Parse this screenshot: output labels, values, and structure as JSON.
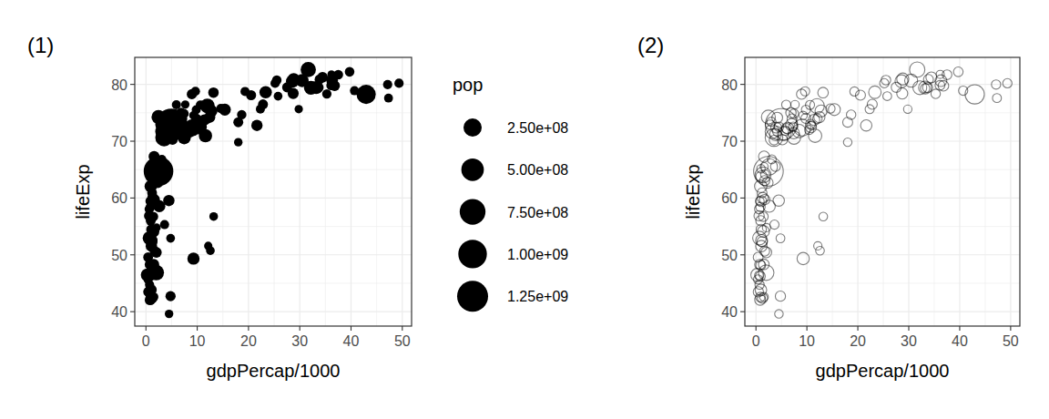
{
  "chart_data": [
    {
      "type": "scatter",
      "title": "(1)",
      "x_label": "gdpPercap/1000",
      "y_label": "lifeExp",
      "marker": "filled",
      "color": "#000000",
      "grid": true,
      "legend": "right",
      "xlim": [
        -2.18,
        51.81
      ],
      "xticks": [
        0,
        10,
        20,
        30,
        40,
        50
      ],
      "ylim": [
        37.46,
        84.75
      ],
      "yticks": [
        40,
        50,
        60,
        70,
        80
      ],
      "size_title": "pop",
      "size_ticks": [
        {
          "value": 250000000,
          "label": "2.50e+08"
        },
        {
          "value": 500000000,
          "label": "5.00e+08"
        },
        {
          "value": 750000000,
          "label": "7.50e+08"
        },
        {
          "value": 1000000000,
          "label": "1.00e+09"
        },
        {
          "value": 1250000000,
          "label": "1.25e+09"
        }
      ],
      "x": [
        0.97,
        5.94,
        6.22,
        4.8,
        12.78,
        34.44,
        36.13,
        29.8,
        1.39,
        33.69,
        1.44,
        3.82,
        7.45,
        12.57,
        9.07,
        10.68,
        1.22,
        0.43,
        1.71,
        2.04,
        36.32,
        0.71,
        1.7,
        13.17,
        4.96,
        7.01,
        0.99,
        0.28,
        3.63,
        9.65,
        1.54,
        14.62,
        8.95,
        22.83,
        35.28,
        2.08,
        6.03,
        6.87,
        5.58,
        5.73,
        12.15,
        0.64,
        0.69,
        33.21,
        30.47,
        13.21,
        0.75,
        32.17,
        1.33,
        27.54,
        5.19,
        0.94,
        0.58,
        1.2,
        3.55,
        39.72,
        18.01,
        36.18,
        2.45,
        3.54,
        11.61,
        4.47,
        40.68,
        25.52,
        28.57,
        7.32,
        31.66,
        4.52,
        1.46,
        1.59,
        23.35,
        47.31,
        10.46,
        1.57,
        0.41,
        12.06,
        1.04,
        0.76,
        12.45,
        1.04,
        1.8,
        10.96,
        11.98,
        3.1,
        9.25,
        3.82,
        0.82,
        0.94,
        4.81,
        1.09,
        36.8,
        25.19,
        2.75,
        0.62,
        2.01,
        49.36,
        22.32,
        2.61,
        9.81,
        4.17,
        7.41,
        3.19,
        15.39,
        20.51,
        19.33,
        7.67,
        10.81,
        0.86,
        1.6,
        21.65,
        1.71,
        9.79,
        0.86,
        47.14,
        18.68,
        25.77,
        0.93,
        9.27,
        28.82,
        3.97,
        2.6,
        4.51,
        33.86,
        37.51,
        4.18,
        28.72,
        1.11,
        7.46,
        0.88,
        18.01,
        7.09,
        8.46,
        1.06,
        33.2,
        42.95,
        10.61,
        11.42,
        2.44,
        3.03,
        2.28,
        1.27,
        0.47
      ],
      "values": [
        43.83,
        76.42,
        72.3,
        42.73,
        75.32,
        81.24,
        79.83,
        75.64,
        64.06,
        79.44,
        56.73,
        65.55,
        74.85,
        50.73,
        72.39,
        73.01,
        52.3,
        49.58,
        59.72,
        50.43,
        80.65,
        44.74,
        50.65,
        78.55,
        72.96,
        72.89,
        65.15,
        46.46,
        55.32,
        78.78,
        48.33,
        75.75,
        78.27,
        76.49,
        78.33,
        54.79,
        72.24,
        74.99,
        71.34,
        71.88,
        51.58,
        58.04,
        52.95,
        79.31,
        80.66,
        56.74,
        59.45,
        79.41,
        60.02,
        79.48,
        70.26,
        56.01,
        46.39,
        60.92,
        70.2,
        82.21,
        73.34,
        81.76,
        64.7,
        70.65,
        70.96,
        59.55,
        78.89,
        80.75,
        80.55,
        72.57,
        82.6,
        72.54,
        54.11,
        67.3,
        78.62,
        77.59,
        71.99,
        42.59,
        45.68,
        73.95,
        59.44,
        48.3,
        74.24,
        54.47,
        64.16,
        72.8,
        76.2,
        66.8,
        74.54,
        71.16,
        42.08,
        62.07,
        52.91,
        63.79,
        79.76,
        80.2,
        72.9,
        56.87,
        46.86,
        80.2,
        75.64,
        65.48,
        75.54,
        71.75,
        71.42,
        71.69,
        75.56,
        78.1,
        78.75,
        76.44,
        72.48,
        46.24,
        65.53,
        72.78,
        63.06,
        74.0,
        42.57,
        79.97,
        74.66,
        77.93,
        48.16,
        49.34,
        80.94,
        72.4,
        58.56,
        39.61,
        80.88,
        81.7,
        74.14,
        78.4,
        52.52,
        70.62,
        58.42,
        69.82,
        73.92,
        71.78,
        51.54,
        79.43,
        78.24,
        76.38,
        73.75,
        74.25,
        73.42,
        62.7,
        42.38,
        43.49
      ],
      "sizes": [
        31890000,
        3601000,
        33333000,
        12420000,
        40302000,
        20434000,
        8200000,
        709000,
        150448000,
        10392000,
        8078000,
        9119000,
        4552000,
        1639000,
        190011000,
        7323000,
        14326000,
        8391000,
        14132000,
        17696000,
        33390000,
        4369000,
        10239000,
        16285000,
        1318683000,
        44228000,
        711000,
        64607000,
        3801000,
        4134000,
        18013000,
        4493000,
        11417000,
        10229000,
        5468000,
        496000,
        9320000,
        13756000,
        80265000,
        6940000,
        551000,
        4907000,
        76512000,
        5238000,
        61084000,
        1455000,
        1688000,
        82401000,
        22873000,
        10706000,
        12573000,
        9948000,
        1472000,
        8503000,
        7484000,
        6980000,
        9956000,
        302000,
        1110396000,
        223547000,
        69454000,
        27500000,
        4109000,
        6427000,
        58148000,
        2780000,
        127468000,
        6053000,
        35610000,
        23302000,
        49045000,
        2506000,
        3921000,
        2013000,
        3194000,
        6037000,
        19168000,
        13327000,
        24821000,
        12032000,
        3270000,
        1251000,
        108701000,
        2874000,
        685000,
        33757000,
        19952000,
        47762000,
        2055000,
        28902000,
        16571000,
        4116000,
        5675000,
        12895000,
        135031000,
        4628000,
        3205000,
        169271000,
        3242000,
        6667000,
        28675000,
        91077000,
        38518000,
        10643000,
        3942000,
        798000,
        22276000,
        8861000,
        200000,
        27601000,
        12267000,
        10150000,
        6145000,
        4553000,
        5448000,
        2009000,
        9119000,
        43998000,
        40448000,
        20378000,
        42293000,
        1133000,
        9031000,
        7555000,
        19315000,
        23174000,
        38140000,
        65068000,
        5702000,
        1057000,
        10276000,
        71159000,
        29170000,
        60776000,
        301140000,
        3447000,
        26085000,
        85262000,
        4018000,
        22212000,
        11746000,
        12311000
      ]
    },
    {
      "type": "scatter",
      "title": "(2)",
      "x_label": "gdpPercap/1000",
      "y_label": "lifeExp",
      "marker": "open",
      "color": "#000000",
      "grid": true,
      "xlim": [
        -2.18,
        51.81
      ],
      "xticks": [
        0,
        10,
        20,
        30,
        40,
        50
      ],
      "ylim": [
        37.46,
        84.75
      ],
      "yticks": [
        40,
        50,
        60,
        70,
        80
      ],
      "x": [
        0.97,
        5.94,
        6.22,
        4.8,
        12.78,
        34.44,
        36.13,
        29.8,
        1.39,
        33.69,
        1.44,
        3.82,
        7.45,
        12.57,
        9.07,
        10.68,
        1.22,
        0.43,
        1.71,
        2.04,
        36.32,
        0.71,
        1.7,
        13.17,
        4.96,
        7.01,
        0.99,
        0.28,
        3.63,
        9.65,
        1.54,
        14.62,
        8.95,
        22.83,
        35.28,
        2.08,
        6.03,
        6.87,
        5.58,
        5.73,
        12.15,
        0.64,
        0.69,
        33.21,
        30.47,
        13.21,
        0.75,
        32.17,
        1.33,
        27.54,
        5.19,
        0.94,
        0.58,
        1.2,
        3.55,
        39.72,
        18.01,
        36.18,
        2.45,
        3.54,
        11.61,
        4.47,
        40.68,
        25.52,
        28.57,
        7.32,
        31.66,
        4.52,
        1.46,
        1.59,
        23.35,
        47.31,
        10.46,
        1.57,
        0.41,
        12.06,
        1.04,
        0.76,
        12.45,
        1.04,
        1.8,
        10.96,
        11.98,
        3.1,
        9.25,
        3.82,
        0.82,
        0.94,
        4.81,
        1.09,
        36.8,
        25.19,
        2.75,
        0.62,
        2.01,
        49.36,
        22.32,
        2.61,
        9.81,
        4.17,
        7.41,
        3.19,
        15.39,
        20.51,
        19.33,
        7.67,
        10.81,
        0.86,
        1.6,
        21.65,
        1.71,
        9.79,
        0.86,
        47.14,
        18.68,
        25.77,
        0.93,
        9.27,
        28.82,
        3.97,
        2.6,
        4.51,
        33.86,
        37.51,
        4.18,
        28.72,
        1.11,
        7.46,
        0.88,
        18.01,
        7.09,
        8.46,
        1.06,
        33.2,
        42.95,
        10.61,
        11.42,
        2.44,
        3.03,
        2.28,
        1.27,
        0.47
      ],
      "values": [
        43.83,
        76.42,
        72.3,
        42.73,
        75.32,
        81.24,
        79.83,
        75.64,
        64.06,
        79.44,
        56.73,
        65.55,
        74.85,
        50.73,
        72.39,
        73.01,
        52.3,
        49.58,
        59.72,
        50.43,
        80.65,
        44.74,
        50.65,
        78.55,
        72.96,
        72.89,
        65.15,
        46.46,
        55.32,
        78.78,
        48.33,
        75.75,
        78.27,
        76.49,
        78.33,
        54.79,
        72.24,
        74.99,
        71.34,
        71.88,
        51.58,
        58.04,
        52.95,
        79.31,
        80.66,
        56.74,
        59.45,
        79.41,
        60.02,
        79.48,
        70.26,
        56.01,
        46.39,
        60.92,
        70.2,
        82.21,
        73.34,
        81.76,
        64.7,
        70.65,
        70.96,
        59.55,
        78.89,
        80.75,
        80.55,
        72.57,
        82.6,
        72.54,
        54.11,
        67.3,
        78.62,
        77.59,
        71.99,
        42.59,
        45.68,
        73.95,
        59.44,
        48.3,
        74.24,
        54.47,
        64.16,
        72.8,
        76.2,
        66.8,
        74.54,
        71.16,
        42.08,
        62.07,
        52.91,
        63.79,
        79.76,
        80.2,
        72.9,
        56.87,
        46.86,
        80.2,
        75.64,
        65.48,
        75.54,
        71.75,
        71.42,
        71.69,
        75.56,
        78.1,
        78.75,
        76.44,
        72.48,
        46.24,
        65.53,
        72.78,
        63.06,
        74.0,
        42.57,
        79.97,
        74.66,
        77.93,
        48.16,
        49.34,
        80.94,
        72.4,
        58.56,
        39.61,
        80.88,
        81.7,
        74.14,
        78.4,
        52.52,
        70.62,
        58.42,
        69.82,
        73.92,
        71.78,
        51.54,
        79.43,
        78.24,
        76.38,
        73.75,
        74.25,
        73.42,
        62.7,
        42.38,
        43.49
      ],
      "sizes": [
        31890000,
        3601000,
        33333000,
        12420000,
        40302000,
        20434000,
        8200000,
        709000,
        150448000,
        10392000,
        8078000,
        9119000,
        4552000,
        1639000,
        190011000,
        7323000,
        14326000,
        8391000,
        14132000,
        17696000,
        33390000,
        4369000,
        10239000,
        16285000,
        1318683000,
        44228000,
        711000,
        64607000,
        3801000,
        4134000,
        18013000,
        4493000,
        11417000,
        10229000,
        5468000,
        496000,
        9320000,
        13756000,
        80265000,
        6940000,
        551000,
        4907000,
        76512000,
        5238000,
        61084000,
        1455000,
        1688000,
        82401000,
        22873000,
        10706000,
        12573000,
        9948000,
        1472000,
        8503000,
        7484000,
        6980000,
        9956000,
        302000,
        1110396000,
        223547000,
        69454000,
        27500000,
        4109000,
        6427000,
        58148000,
        2780000,
        127468000,
        6053000,
        35610000,
        23302000,
        49045000,
        2506000,
        3921000,
        2013000,
        3194000,
        6037000,
        19168000,
        13327000,
        24821000,
        12032000,
        3270000,
        1251000,
        108701000,
        2874000,
        685000,
        33757000,
        19952000,
        47762000,
        2055000,
        28902000,
        16571000,
        4116000,
        5675000,
        12895000,
        135031000,
        4628000,
        3205000,
        169271000,
        3242000,
        6667000,
        28675000,
        91077000,
        38518000,
        10643000,
        3942000,
        798000,
        22276000,
        8861000,
        200000,
        27601000,
        12267000,
        10150000,
        6145000,
        4553000,
        5448000,
        2009000,
        9119000,
        43998000,
        40448000,
        20378000,
        42293000,
        1133000,
        9031000,
        7555000,
        19315000,
        23174000,
        38140000,
        65068000,
        5702000,
        1057000,
        10276000,
        71159000,
        29170000,
        60776000,
        301140000,
        3447000,
        26085000,
        85262000,
        4018000,
        22212000,
        11746000,
        12311000
      ]
    }
  ]
}
